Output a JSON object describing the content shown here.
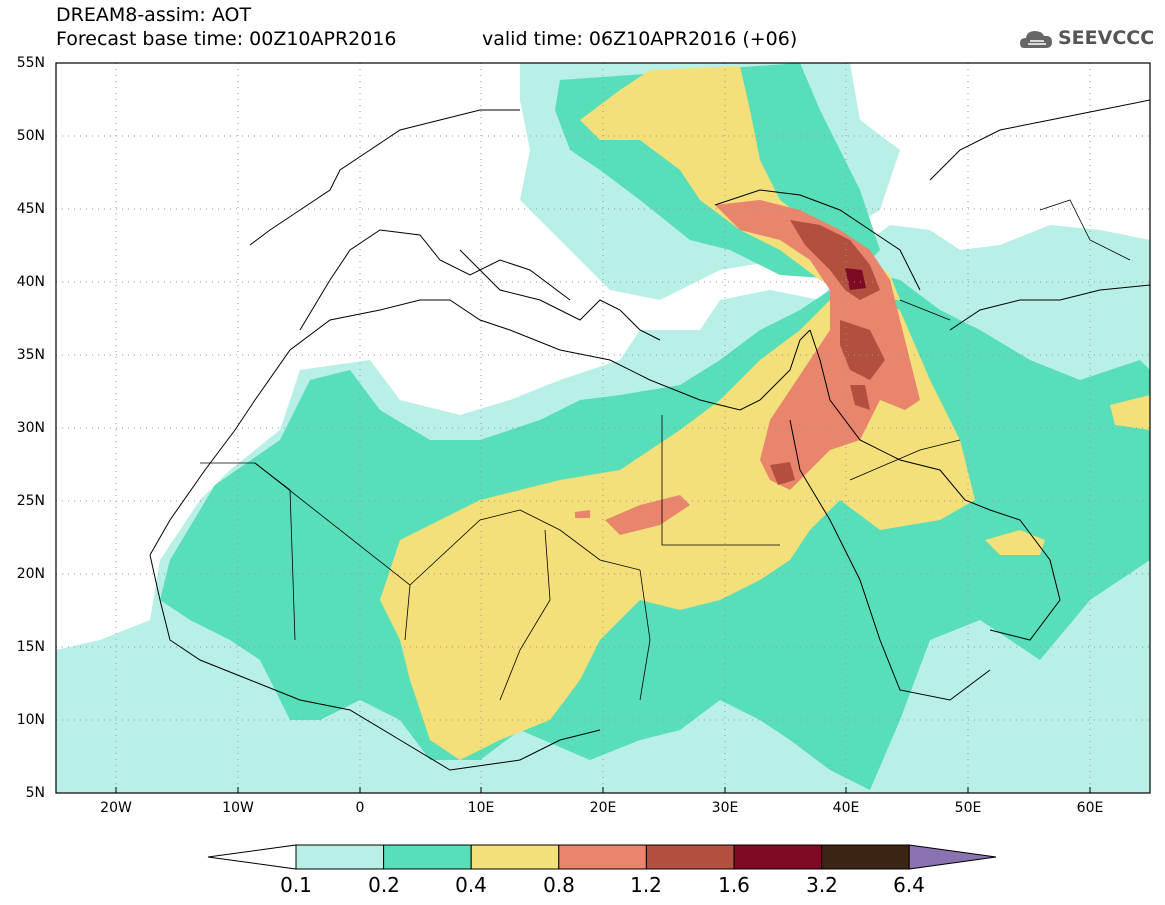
{
  "header": {
    "title": "DREAM8-assim: AOT",
    "base_time": "Forecast base time: 00Z10APR2016",
    "valid_time": "valid time: 06Z10APR2016 (+06)",
    "logo_text": "SEEVCCC"
  },
  "map": {
    "lon_range": [
      -25,
      65
    ],
    "lat_range": [
      5,
      55
    ],
    "lat_ticks": [
      "55N",
      "50N",
      "45N",
      "40N",
      "35N",
      "30N",
      "25N",
      "20N",
      "15N",
      "10N",
      "5N"
    ],
    "lon_ticks": [
      "20W",
      "10W",
      "0",
      "10E",
      "20E",
      "30E",
      "40E",
      "50E",
      "60E"
    ],
    "grid": true
  },
  "colorbar": {
    "labels": [
      "0.1",
      "0.2",
      "0.4",
      "0.8",
      "1.2",
      "1.6",
      "3.2",
      "6.4"
    ],
    "colors": [
      "#ffffff",
      "#b8efe6",
      "#58deb8",
      "#f3e07a",
      "#e9856c",
      "#b24f3e",
      "#7e0a24",
      "#3b2412",
      "#8b72b0"
    ]
  }
}
